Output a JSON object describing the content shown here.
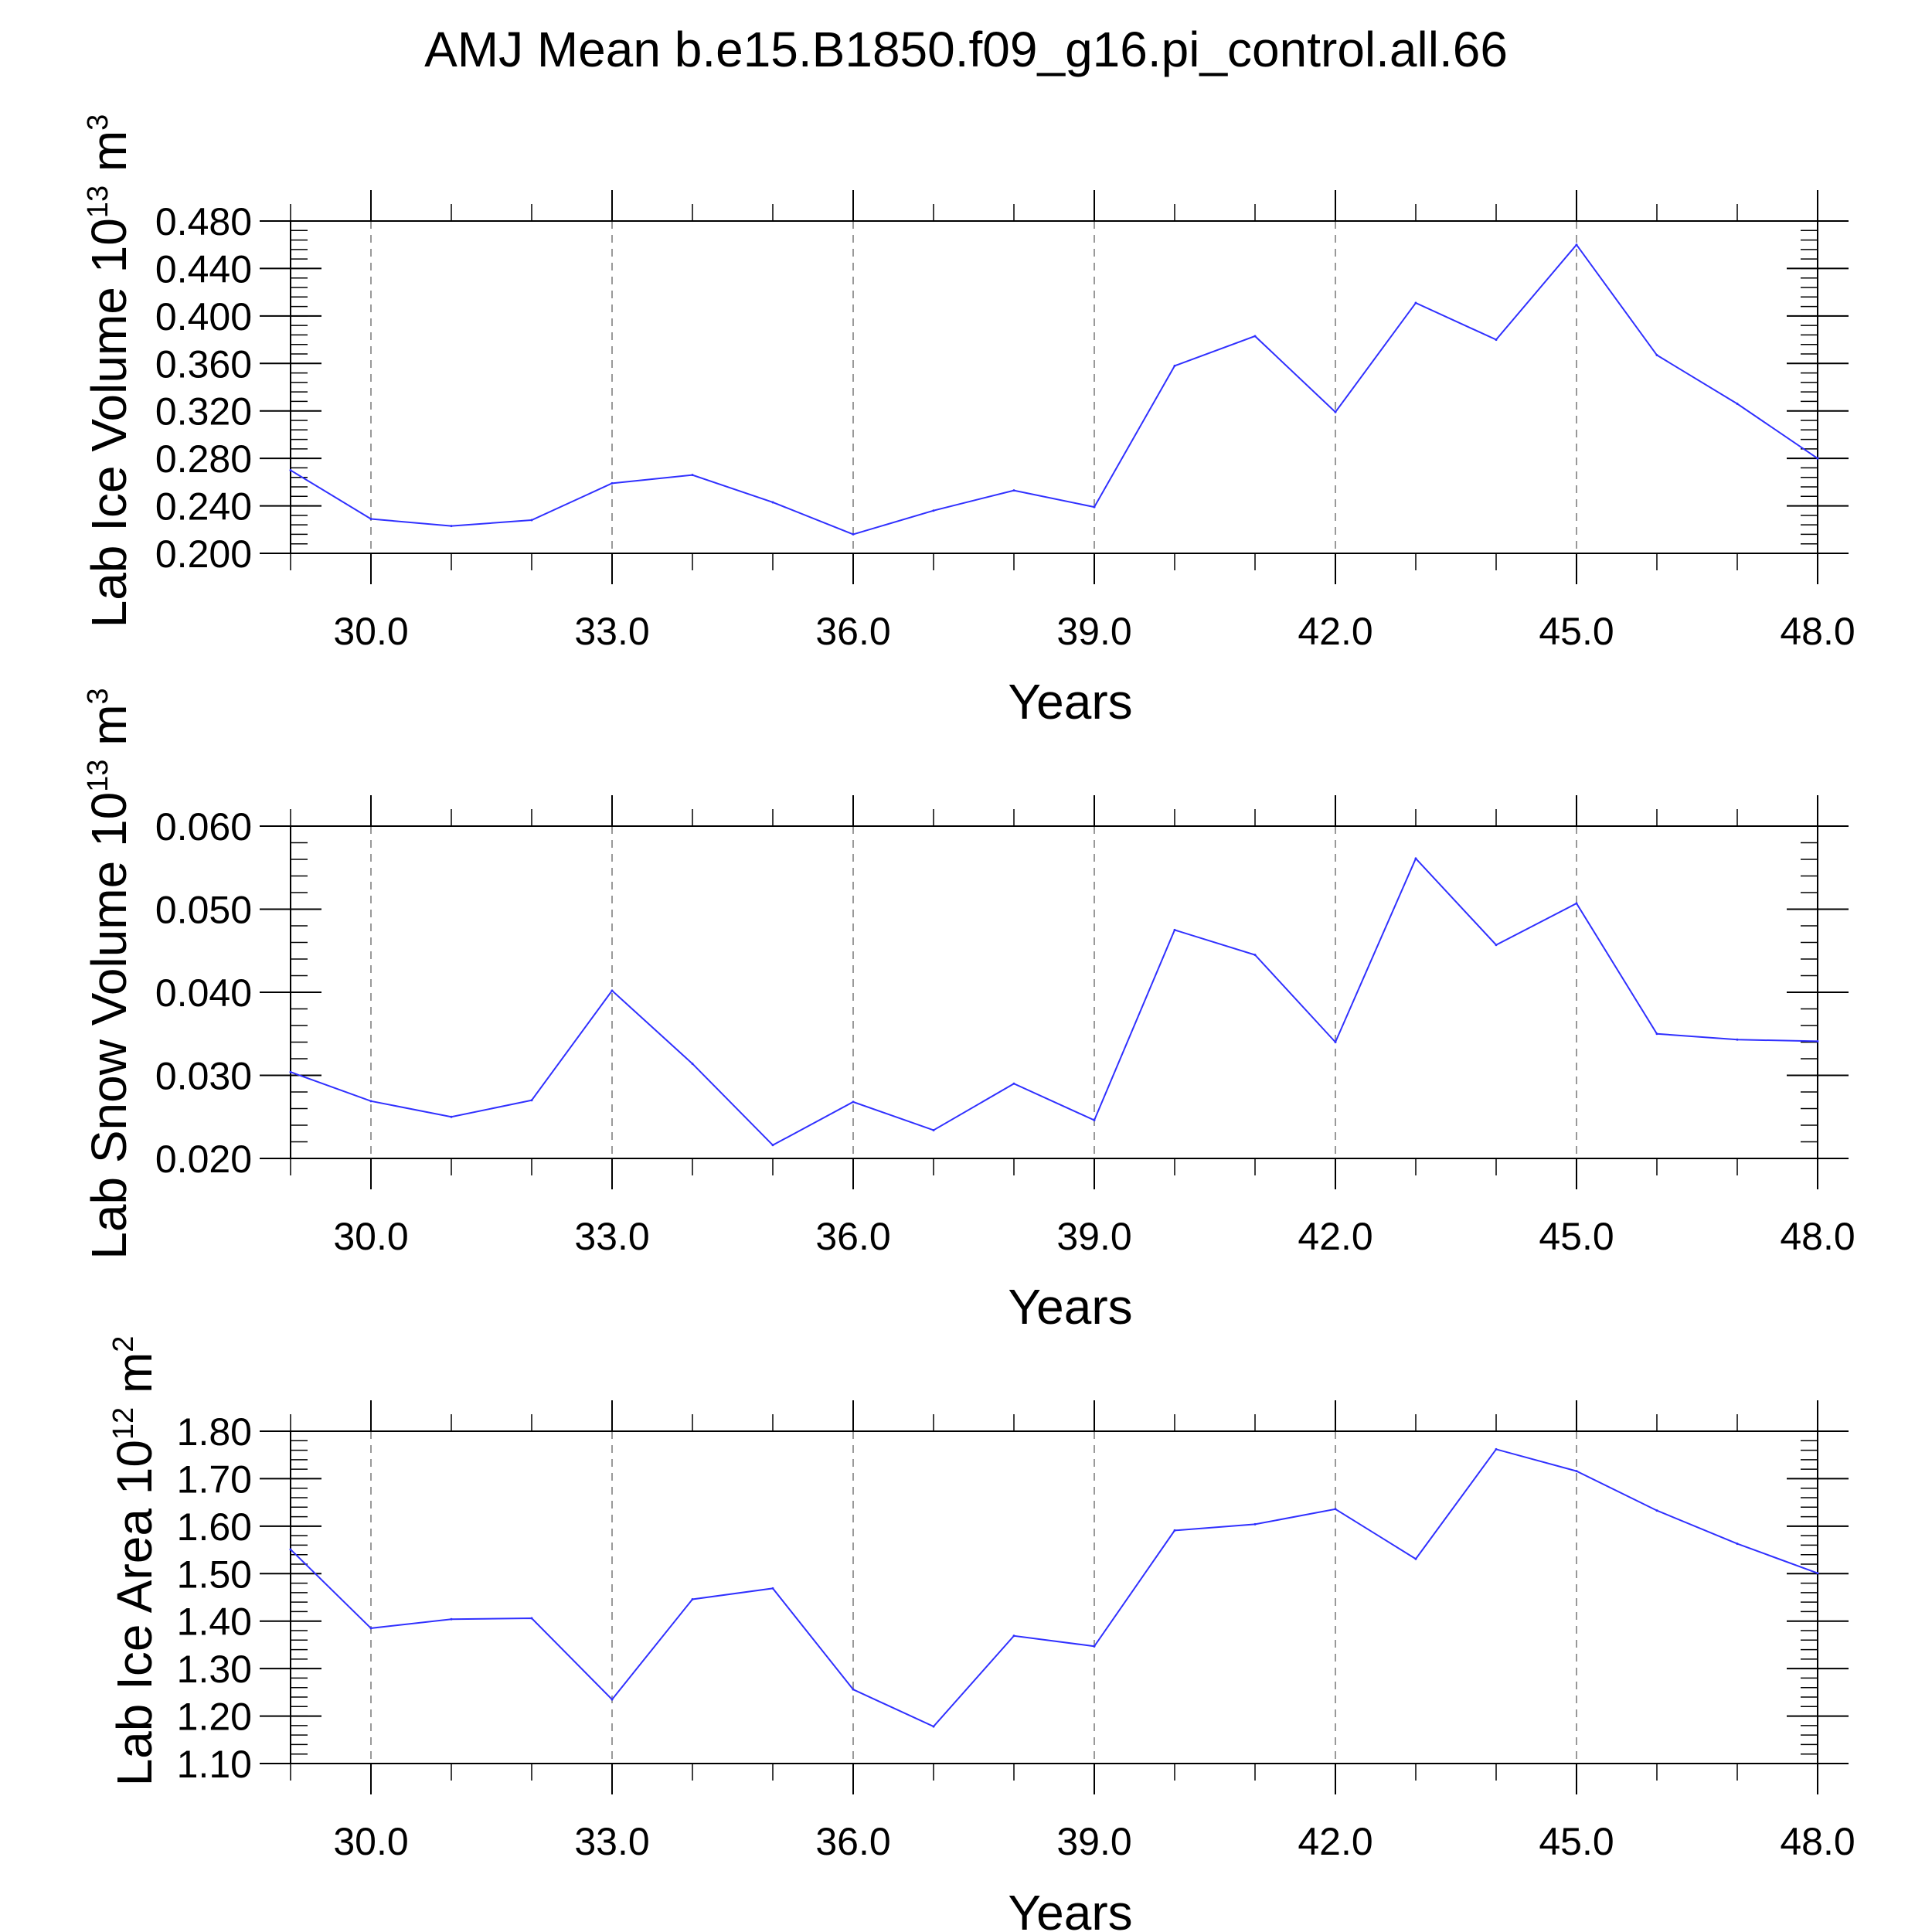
{
  "figure_title": "AMJ Mean b.e15.B1850.f09_g16.pi_control.all.66",
  "colors": {
    "line": "#3030ff",
    "axis": "#000000",
    "grid": "#999999"
  },
  "chart_data": [
    {
      "type": "line",
      "ylabel_main": "Lab Ice Volume 10",
      "ylabel_exp": "13",
      "ylabel_unit": " m",
      "ylabel_unit_exp": "3",
      "xlabel": "Years",
      "xlim": [
        29,
        48
      ],
      "xticks": [
        30,
        33,
        36,
        39,
        42,
        45,
        48
      ],
      "xtick_labels": [
        "30.0",
        "33.0",
        "36.0",
        "39.0",
        "42.0",
        "45.0",
        "48.0"
      ],
      "ylim": [
        0.2,
        0.48
      ],
      "yticks": [
        0.2,
        0.24,
        0.28,
        0.32,
        0.36,
        0.4,
        0.44,
        0.48
      ],
      "ytick_labels": [
        "0.200",
        "0.240",
        "0.280",
        "0.320",
        "0.360",
        "0.400",
        "0.440",
        "0.480"
      ],
      "y_minor_step": 0.008,
      "grid": "vertical dashed at major x ticks",
      "x": [
        29,
        30,
        31,
        32,
        33,
        34,
        35,
        36,
        37,
        38,
        39,
        40,
        41,
        42,
        43,
        44,
        45,
        46,
        47,
        48
      ],
      "series": [
        {
          "values": [
            0.27,
            0.229,
            0.223,
            0.228,
            0.259,
            0.266,
            0.243,
            0.216,
            0.236,
            0.253,
            0.239,
            0.358,
            0.383,
            0.319,
            0.411,
            0.38,
            0.46,
            0.367,
            0.326,
            0.28
          ]
        }
      ]
    },
    {
      "type": "line",
      "ylabel_main": "Lab Snow Volume 10",
      "ylabel_exp": "13",
      "ylabel_unit": " m",
      "ylabel_unit_exp": "3",
      "xlabel": "Years",
      "xlim": [
        29,
        48
      ],
      "xticks": [
        30,
        33,
        36,
        39,
        42,
        45,
        48
      ],
      "xtick_labels": [
        "30.0",
        "33.0",
        "36.0",
        "39.0",
        "42.0",
        "45.0",
        "48.0"
      ],
      "ylim": [
        0.02,
        0.06
      ],
      "yticks": [
        0.02,
        0.03,
        0.04,
        0.05,
        0.06
      ],
      "ytick_labels": [
        "0.020",
        "0.030",
        "0.040",
        "0.050",
        "0.060"
      ],
      "y_minor_step": 0.002,
      "grid": "vertical dashed at major x ticks",
      "x": [
        29,
        30,
        31,
        32,
        33,
        34,
        35,
        36,
        37,
        38,
        39,
        40,
        41,
        42,
        43,
        44,
        45,
        46,
        47,
        48
      ],
      "series": [
        {
          "values": [
            0.0304,
            0.0269,
            0.025,
            0.027,
            0.0402,
            0.0314,
            0.0216,
            0.0268,
            0.0234,
            0.029,
            0.0246,
            0.0475,
            0.0445,
            0.034,
            0.0561,
            0.0457,
            0.0507,
            0.035,
            0.0343,
            0.0341
          ]
        }
      ]
    },
    {
      "type": "line",
      "ylabel_main": "Lab Ice Area 10",
      "ylabel_exp": "12",
      "ylabel_unit": " m",
      "ylabel_unit_exp": "2",
      "xlabel": "Years",
      "xlim": [
        29,
        48
      ],
      "xticks": [
        30,
        33,
        36,
        39,
        42,
        45,
        48
      ],
      "xtick_labels": [
        "30.0",
        "33.0",
        "36.0",
        "39.0",
        "42.0",
        "45.0",
        "48.0"
      ],
      "ylim": [
        1.1,
        1.8
      ],
      "yticks": [
        1.1,
        1.2,
        1.3,
        1.4,
        1.5,
        1.6,
        1.7,
        1.8
      ],
      "ytick_labels": [
        "1.10",
        "1.20",
        "1.30",
        "1.40",
        "1.50",
        "1.60",
        "1.70",
        "1.80"
      ],
      "y_minor_step": 0.02,
      "grid": "vertical dashed at major x ticks",
      "x": [
        29,
        30,
        31,
        32,
        33,
        34,
        35,
        36,
        37,
        38,
        39,
        40,
        41,
        42,
        43,
        44,
        45,
        46,
        47,
        48
      ],
      "series": [
        {
          "values": [
            1.551,
            1.385,
            1.404,
            1.406,
            1.235,
            1.446,
            1.469,
            1.256,
            1.178,
            1.369,
            1.347,
            1.591,
            1.604,
            1.636,
            1.531,
            1.762,
            1.716,
            1.633,
            1.563,
            1.501
          ]
        }
      ]
    }
  ]
}
